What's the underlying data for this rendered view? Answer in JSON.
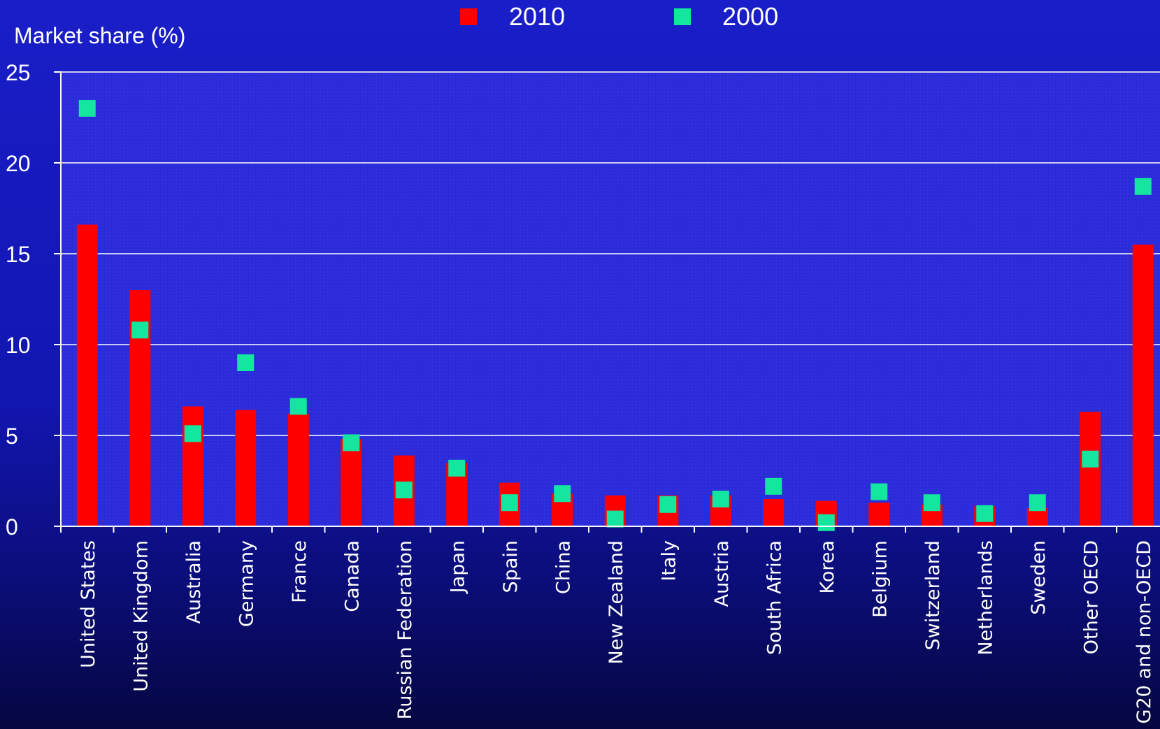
{
  "chart_data": {
    "type": "bar",
    "ylabel": "Market share (%)",
    "ylim": [
      0,
      25
    ],
    "yticks": [
      0,
      5,
      10,
      15,
      20,
      25
    ],
    "grid": true,
    "legend_position": "top-center",
    "categories": [
      "United States",
      "United Kingdom",
      "Australia",
      "Germany",
      "France",
      "Canada",
      "Russian Federation",
      "Japan",
      "Spain",
      "China",
      "New Zealand",
      "Italy",
      "Austria",
      "South Africa",
      "Korea",
      "Belgium",
      "Switzerland",
      "Netherlands",
      "Sweden",
      "Other OECD",
      "G20 and non-OECD"
    ],
    "series": [
      {
        "name": "2010",
        "style": "bar",
        "color": "#ff0000",
        "values": [
          16.6,
          13.0,
          6.6,
          6.4,
          6.2,
          4.8,
          3.9,
          3.5,
          2.4,
          1.8,
          1.7,
          1.7,
          1.7,
          1.5,
          1.4,
          1.3,
          1.2,
          1.1,
          1.0,
          6.3,
          15.5
        ]
      },
      {
        "name": "2000",
        "style": "marker",
        "color": "#14e6a0",
        "values": [
          23.0,
          10.8,
          5.1,
          9.0,
          6.6,
          4.6,
          2.0,
          3.2,
          1.3,
          1.8,
          0.4,
          1.2,
          1.5,
          2.2,
          0.2,
          1.9,
          1.3,
          0.7,
          1.3,
          3.7,
          18.7
        ]
      }
    ]
  }
}
